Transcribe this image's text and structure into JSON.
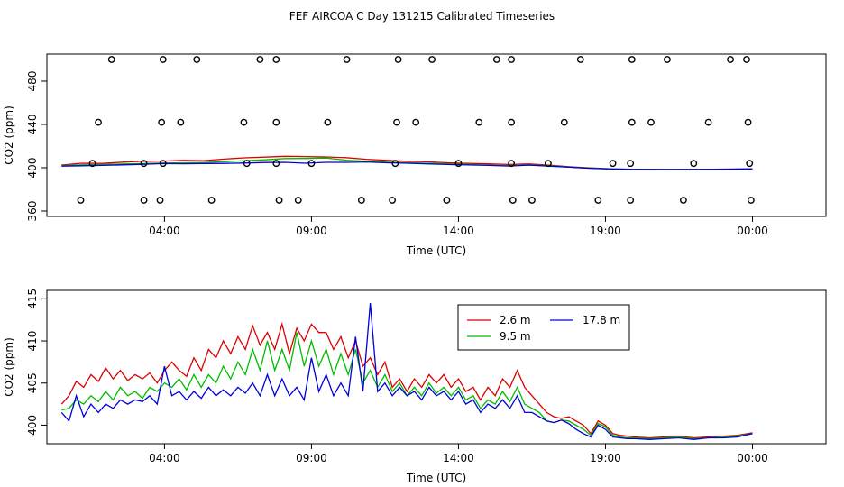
{
  "title": "FEF AIRCOA C  Day 131215  Calibrated Timeseries",
  "colors": {
    "red": "#dd0000",
    "green": "#00bb00",
    "blue": "#0000dd",
    "axis": "#000000"
  },
  "chart_data": [
    {
      "type": "scatter",
      "xlabel": "Time (UTC)",
      "ylabel": "CO2 (ppm)",
      "xlim": [
        0,
        26.5
      ],
      "ylim": [
        355,
        505
      ],
      "xticks": [
        {
          "value": 4,
          "label": "04:00"
        },
        {
          "value": 9,
          "label": "09:00"
        },
        {
          "value": 14,
          "label": "14:00"
        },
        {
          "value": 19,
          "label": "19:00"
        },
        {
          "value": 24,
          "label": "00:00"
        }
      ],
      "yticks": [
        {
          "value": 360,
          "label": "360"
        },
        {
          "value": 400,
          "label": "400"
        },
        {
          "value": 440,
          "label": "440"
        },
        {
          "value": 480,
          "label": "480"
        }
      ],
      "calibration_points": {
        "x": [
          2.2,
          3.95,
          5.1,
          7.25,
          7.8,
          10.2,
          11.95,
          13.1,
          15.3,
          15.8,
          18.15,
          19.9,
          21.1,
          23.25,
          23.8,
          1.75,
          3.9,
          4.55,
          6.7,
          7.8,
          9.55,
          11.9,
          12.55,
          14.7,
          15.8,
          17.6,
          19.9,
          20.55,
          22.5,
          23.85,
          1.55,
          3.3,
          3.95,
          6.8,
          7.8,
          9.0,
          11.85,
          14.0,
          15.8,
          17.05,
          19.25,
          19.85,
          22.0,
          23.9,
          1.15,
          3.3,
          3.85,
          5.6,
          7.9,
          8.55,
          10.7,
          11.75,
          13.6,
          15.85,
          16.5,
          18.75,
          19.85,
          21.65,
          23.95
        ],
        "y": [
          500,
          500,
          500,
          500,
          500,
          500,
          500,
          500,
          500,
          500,
          500,
          500,
          500,
          500,
          500,
          442,
          442,
          442,
          442,
          442,
          442,
          442,
          442,
          442,
          442,
          442,
          442,
          442,
          442,
          442,
          404,
          404,
          404,
          404,
          404,
          404,
          404,
          404,
          404,
          404,
          404,
          404,
          404,
          404,
          370,
          370,
          370,
          370,
          370,
          370,
          370,
          370,
          370,
          370,
          370,
          370,
          370,
          370,
          370
        ]
      },
      "series": [
        {
          "name": "2.6 m",
          "color": "#dd0000",
          "values": [
            402.5,
            404.2,
            404.0,
            405.2,
            406.0,
            406.2,
            406.8,
            406.6,
            408.0,
            409.2,
            409.8,
            410.6,
            410.3,
            410.0,
            409.3,
            407.8,
            406.8,
            406.0,
            405.5,
            404.6,
            404.0,
            403.6,
            403.0,
            403.5,
            402.4,
            400.9,
            399.8,
            399.1,
            398.7,
            398.6,
            398.5,
            398.6,
            398.6,
            398.8,
            399.1
          ]
        },
        {
          "name": "9.5 m",
          "color": "#00bb00",
          "values": [
            401.8,
            402.7,
            403.0,
            403.5,
            403.8,
            404.3,
            404.6,
            404.9,
            405.6,
            406.6,
            407.3,
            408.5,
            408.6,
            409.0,
            407.0,
            406.0,
            405.2,
            404.7,
            404.2,
            403.6,
            403.2,
            402.4,
            402.0,
            402.6,
            401.8,
            400.6,
            399.6,
            398.9,
            398.6,
            398.5,
            398.4,
            398.5,
            398.5,
            398.7,
            399.0
          ]
        },
        {
          "name": "17.8 m",
          "color": "#0000dd",
          "values": [
            401.5,
            401.8,
            402.2,
            402.7,
            403.2,
            403.8,
            403.7,
            403.9,
            404.0,
            404.3,
            404.8,
            405.0,
            404.2,
            405.0,
            405.0,
            405.3,
            404.6,
            404.2,
            403.6,
            403.0,
            402.6,
            402.2,
            401.6,
            402.4,
            401.5,
            400.5,
            399.5,
            398.8,
            398.5,
            398.4,
            398.3,
            398.4,
            398.5,
            398.6,
            398.9
          ]
        }
      ]
    },
    {
      "type": "line",
      "xlabel": "Time (UTC)",
      "ylabel": "CO2 (ppm)",
      "xlim": [
        0,
        26.5
      ],
      "ylim": [
        397.8,
        416
      ],
      "xticks": [
        {
          "value": 4,
          "label": "04:00"
        },
        {
          "value": 9,
          "label": "09:00"
        },
        {
          "value": 14,
          "label": "14:00"
        },
        {
          "value": 19,
          "label": "19:00"
        },
        {
          "value": 24,
          "label": "00:00"
        }
      ],
      "yticks": [
        {
          "value": 400,
          "label": "400"
        },
        {
          "value": 405,
          "label": "405"
        },
        {
          "value": 410,
          "label": "410"
        },
        {
          "value": 415,
          "label": "415"
        }
      ],
      "legend": {
        "position": "top-center",
        "entries": [
          {
            "name": "2.6 m",
            "color": "#dd0000"
          },
          {
            "name": "17.8 m",
            "color": "#0000dd"
          },
          {
            "name": "9.5 m",
            "color": "#00bb00"
          }
        ]
      },
      "series": [
        {
          "name": "2.6 m",
          "color": "#dd0000",
          "x": [
            0.5,
            0.75,
            1.0,
            1.25,
            1.5,
            1.75,
            2.0,
            2.25,
            2.5,
            2.75,
            3.0,
            3.25,
            3.5,
            3.75,
            4.0,
            4.25,
            4.5,
            4.75,
            5.0,
            5.25,
            5.5,
            5.75,
            6.0,
            6.25,
            6.5,
            6.75,
            7.0,
            7.25,
            7.5,
            7.75,
            8.0,
            8.25,
            8.5,
            8.75,
            9.0,
            9.25,
            9.5,
            9.75,
            10.0,
            10.25,
            10.5,
            10.75,
            11.0,
            11.25,
            11.5,
            11.75,
            12.0,
            12.25,
            12.5,
            12.75,
            13.0,
            13.25,
            13.5,
            13.75,
            14.0,
            14.25,
            14.5,
            14.75,
            15.0,
            15.25,
            15.5,
            15.75,
            16.0,
            16.25,
            16.5,
            16.75,
            17.0,
            17.25,
            17.5,
            17.75,
            18.0,
            18.25,
            18.5,
            18.75,
            19.0,
            19.25,
            19.5,
            19.75,
            20.0,
            20.5,
            21.0,
            21.5,
            22.0,
            22.5,
            23.0,
            23.5,
            24.0
          ],
          "y": [
            402.5,
            403.5,
            405.2,
            404.5,
            406.0,
            405.2,
            406.8,
            405.5,
            406.5,
            405.3,
            406.0,
            405.5,
            406.2,
            405.0,
            406.5,
            407.5,
            406.5,
            405.8,
            408.0,
            406.5,
            409.0,
            408.0,
            410.0,
            408.5,
            410.5,
            409.0,
            411.8,
            409.5,
            411.0,
            409.0,
            412.0,
            408.5,
            411.5,
            410.0,
            412.0,
            411.0,
            411.0,
            409.0,
            410.5,
            408.0,
            410.0,
            407.0,
            408.0,
            406.0,
            407.5,
            404.5,
            405.5,
            404.0,
            405.5,
            404.5,
            406.0,
            405.0,
            406.0,
            404.5,
            405.5,
            404.0,
            404.5,
            403.0,
            404.5,
            403.5,
            405.5,
            404.5,
            406.5,
            404.5,
            403.5,
            402.5,
            401.5,
            401.0,
            400.8,
            401.0,
            400.5,
            400.0,
            399.0,
            400.5,
            400.0,
            399.0,
            398.8,
            398.7,
            398.6,
            398.5,
            398.6,
            398.7,
            398.5,
            398.6,
            398.7,
            398.8,
            399.1
          ]
        },
        {
          "name": "9.5 m",
          "color": "#00bb00",
          "x": [
            0.5,
            0.75,
            1.0,
            1.25,
            1.5,
            1.75,
            2.0,
            2.25,
            2.5,
            2.75,
            3.0,
            3.25,
            3.5,
            3.75,
            4.0,
            4.25,
            4.5,
            4.75,
            5.0,
            5.25,
            5.5,
            5.75,
            6.0,
            6.25,
            6.5,
            6.75,
            7.0,
            7.25,
            7.5,
            7.75,
            8.0,
            8.25,
            8.5,
            8.75,
            9.0,
            9.25,
            9.5,
            9.75,
            10.0,
            10.25,
            10.5,
            10.75,
            11.0,
            11.25,
            11.5,
            11.75,
            12.0,
            12.25,
            12.5,
            12.75,
            13.0,
            13.25,
            13.5,
            13.75,
            14.0,
            14.25,
            14.5,
            14.75,
            15.0,
            15.25,
            15.5,
            15.75,
            16.0,
            16.25,
            16.5,
            16.75,
            17.0,
            17.25,
            17.5,
            17.75,
            18.0,
            18.25,
            18.5,
            18.75,
            19.0,
            19.25,
            19.5,
            19.75,
            20.0,
            20.5,
            21.0,
            21.5,
            22.0,
            22.5,
            23.0,
            23.5,
            24.0
          ],
          "y": [
            401.8,
            402.0,
            403.0,
            402.5,
            403.5,
            402.8,
            404.0,
            403.0,
            404.5,
            403.5,
            404.0,
            403.2,
            404.5,
            404.0,
            405.0,
            404.5,
            405.5,
            404.2,
            406.0,
            404.5,
            406.0,
            405.0,
            407.0,
            405.5,
            407.5,
            406.0,
            409.0,
            406.5,
            410.0,
            406.5,
            409.0,
            406.5,
            411.0,
            407.0,
            410.0,
            407.0,
            409.0,
            406.0,
            408.5,
            406.0,
            409.0,
            405.0,
            406.5,
            404.5,
            406.0,
            404.0,
            405.0,
            403.5,
            404.5,
            403.5,
            405.0,
            403.8,
            404.5,
            403.5,
            404.5,
            403.0,
            403.5,
            402.0,
            403.0,
            402.5,
            404.0,
            402.8,
            404.5,
            402.5,
            402.0,
            401.5,
            400.5,
            400.3,
            400.6,
            400.5,
            400.0,
            399.5,
            398.8,
            400.2,
            399.8,
            398.8,
            398.6,
            398.5,
            398.5,
            398.4,
            398.5,
            398.6,
            398.4,
            398.5,
            398.6,
            398.7,
            399.0
          ]
        },
        {
          "name": "17.8 m",
          "color": "#0000dd",
          "x": [
            0.5,
            0.75,
            1.0,
            1.25,
            1.5,
            1.75,
            2.0,
            2.25,
            2.5,
            2.75,
            3.0,
            3.25,
            3.5,
            3.75,
            4.0,
            4.25,
            4.5,
            4.75,
            5.0,
            5.25,
            5.5,
            5.75,
            6.0,
            6.25,
            6.5,
            6.75,
            7.0,
            7.25,
            7.5,
            7.75,
            8.0,
            8.25,
            8.5,
            8.75,
            9.0,
            9.25,
            9.5,
            9.75,
            10.0,
            10.25,
            10.5,
            10.75,
            11.0,
            11.25,
            11.5,
            11.75,
            12.0,
            12.25,
            12.5,
            12.75,
            13.0,
            13.25,
            13.5,
            13.75,
            14.0,
            14.25,
            14.5,
            14.75,
            15.0,
            15.25,
            15.5,
            15.75,
            16.0,
            16.25,
            16.5,
            16.75,
            17.0,
            17.25,
            17.5,
            17.75,
            18.0,
            18.25,
            18.5,
            18.75,
            19.0,
            19.25,
            19.5,
            19.75,
            20.0,
            20.5,
            21.0,
            21.5,
            22.0,
            22.5,
            23.0,
            23.5,
            24.0
          ],
          "y": [
            401.5,
            400.5,
            403.5,
            401.0,
            402.5,
            401.5,
            402.5,
            402.0,
            403.0,
            402.5,
            403.0,
            402.8,
            403.5,
            402.5,
            407.0,
            403.5,
            404.0,
            403.0,
            404.0,
            403.2,
            404.5,
            403.5,
            404.2,
            403.5,
            404.5,
            403.8,
            405.0,
            403.5,
            406.0,
            403.5,
            405.5,
            403.5,
            404.5,
            403.0,
            408.0,
            404.0,
            406.0,
            403.5,
            405.0,
            403.5,
            410.5,
            404.0,
            414.5,
            404.0,
            405.0,
            403.5,
            404.5,
            403.5,
            404.0,
            403.0,
            404.5,
            403.5,
            404.0,
            403.0,
            404.0,
            402.5,
            403.0,
            401.5,
            402.5,
            402.0,
            403.0,
            402.0,
            403.5,
            401.5,
            401.5,
            401.0,
            400.5,
            400.3,
            400.6,
            400.2,
            399.5,
            399.0,
            398.6,
            400.0,
            399.5,
            398.6,
            398.5,
            398.4,
            398.4,
            398.3,
            398.4,
            398.5,
            398.3,
            398.5,
            398.5,
            398.6,
            399.0
          ]
        }
      ]
    }
  ]
}
